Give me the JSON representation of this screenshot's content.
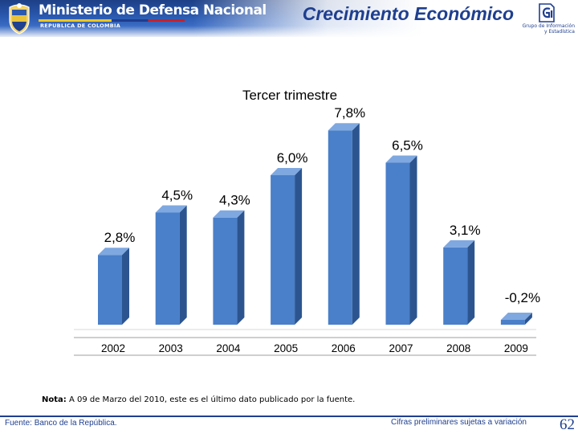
{
  "header": {
    "ministry_title": "Ministerio de Defensa Nacional",
    "ministry_subtitle": "REPUBLICA DE COLOMBIA",
    "slide_title": "Crecimiento Económico",
    "group_name_line1": "Grupo de Información",
    "group_name_line2": "y Estadística"
  },
  "chart_data": {
    "type": "bar",
    "title": "Tercer trimestre",
    "categories": [
      "2002",
      "2003",
      "2004",
      "2005",
      "2006",
      "2007",
      "2008",
      "2009"
    ],
    "values": [
      2.8,
      4.5,
      4.3,
      6.0,
      7.8,
      6.5,
      3.1,
      -0.2
    ],
    "data_labels": [
      "2,8%",
      "4,5%",
      "4,3%",
      "6,0%",
      "7,8%",
      "6,5%",
      "3,1%",
      "-0,2%"
    ],
    "xlabel": "",
    "ylabel": "",
    "ylim": [
      -0.5,
      8.5
    ],
    "grid": false,
    "legend": "none",
    "bar_color": "#4a7fc9",
    "style": "3d-column"
  },
  "footer": {
    "note_bold": "Nota:",
    "note_text": " A 09 de Marzo del 2010, este es el último dato publicado por la fuente.",
    "source": "Fuente: Banco de la República.",
    "preliminary": "Cifras preliminares sujetas a variación",
    "page_number": "62"
  },
  "colors": {
    "brand_blue": "#1f3f8f",
    "header_blue": "#2a59b0",
    "bar_front": "#4a7fc9",
    "bar_side": "#2c5590",
    "bar_top": "#7fa8e0"
  }
}
